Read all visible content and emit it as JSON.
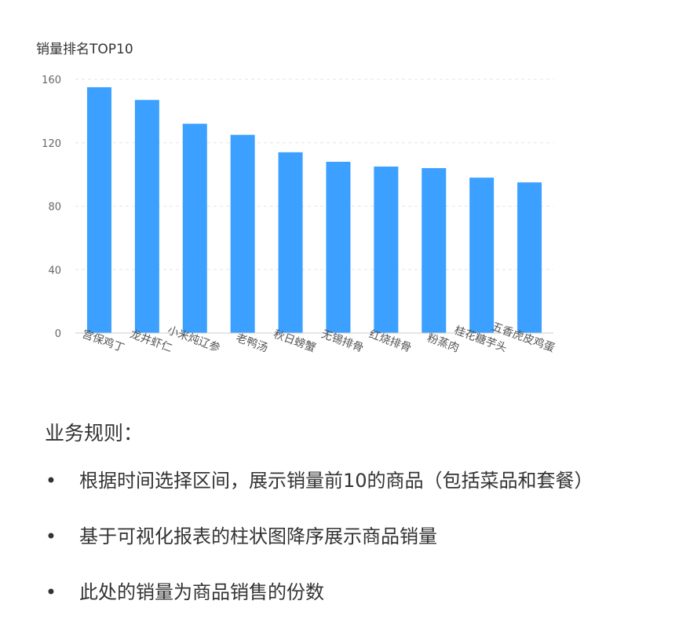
{
  "chart_data": {
    "type": "bar",
    "title": "销量排名TOP10",
    "categories": [
      "宫保鸡丁",
      "龙井虾仁",
      "小米炖辽参",
      "老鸭汤",
      "秋日螃蟹",
      "无锡排骨",
      "红烧排骨",
      "粉蒸肉",
      "桂花糖芋头",
      "五香虎皮鸡蛋"
    ],
    "values": [
      155,
      147,
      132,
      125,
      114,
      108,
      105,
      104,
      98,
      95
    ],
    "ylim": [
      0,
      160
    ],
    "yticks": [
      0,
      40,
      80,
      120,
      160
    ],
    "grid": true,
    "bar_color": "#3BA0FF",
    "xlabel": "",
    "ylabel": ""
  },
  "rules": {
    "heading": "业务规则：",
    "items": [
      "根据时间选择区间，展示销量前10的商品（包括菜品和套餐）",
      "基于可视化报表的柱状图降序展示商品销量",
      "此处的销量为商品销售的份数"
    ],
    "bullet": "•"
  }
}
